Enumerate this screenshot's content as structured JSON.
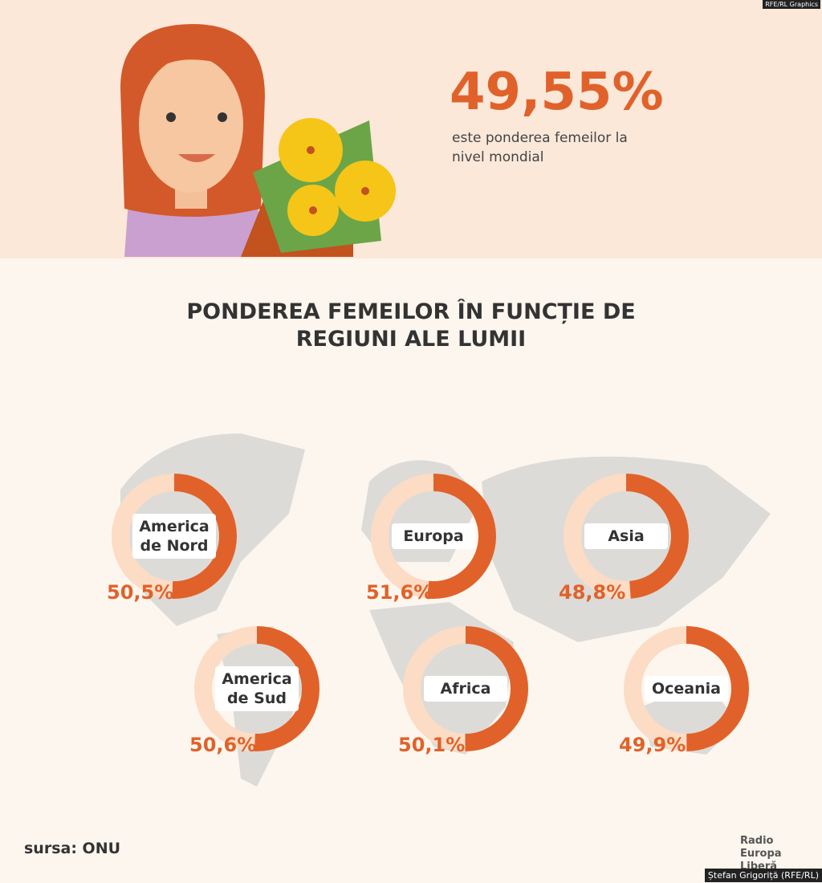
{
  "credit_top": "RFE/RL Graphics",
  "headline": {
    "value_label": "49,55%",
    "text": "este ponderea femeilor la nivel mondial"
  },
  "title": "PONDEREA FEMEILOR ÎN FUNCȚIE DE REGIUNI ALE LUMII",
  "regions": [
    {
      "name": "America de Nord",
      "value": 50.5,
      "value_label": "50,5%"
    },
    {
      "name": "Europa",
      "value": 51.6,
      "value_label": "51,6%"
    },
    {
      "name": "Asia",
      "value": 48.8,
      "value_label": "48,8%"
    },
    {
      "name": "America de Sud",
      "value": 50.6,
      "value_label": "50,6%"
    },
    {
      "name": "Africa",
      "value": 50.1,
      "value_label": "50,1%"
    },
    {
      "name": "Oceania",
      "value": 49.9,
      "value_label": "49,9%"
    }
  ],
  "source": "sursa: ONU",
  "logo": "Radio Europa Liberă",
  "credit": "Ștefan Grigoriță (RFE/RL)"
}
